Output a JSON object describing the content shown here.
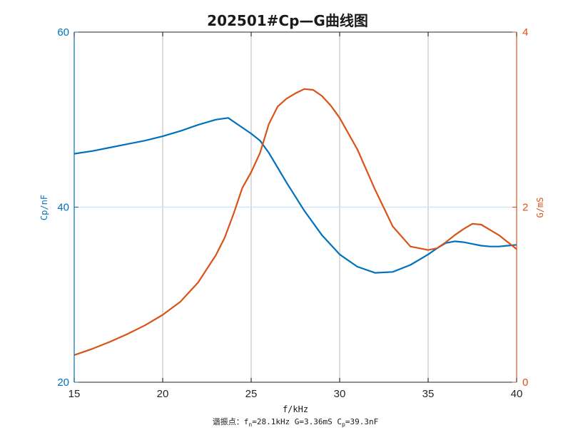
{
  "chart_data": {
    "type": "line",
    "title": "202501#Cp—G曲线图",
    "xlabel": "f/kHz",
    "xlim": [
      15,
      40
    ],
    "xticks": [
      15,
      20,
      25,
      30,
      35,
      40
    ],
    "grid": "vertical",
    "y_left": {
      "label": "Cp/nF",
      "lim": [
        20,
        60
      ],
      "ticks": [
        20,
        40,
        60
      ],
      "color": "#0072BD"
    },
    "y_right": {
      "label": "G/mS",
      "lim": [
        0,
        4
      ],
      "ticks": [
        0,
        2,
        4
      ],
      "color": "#D95319"
    },
    "annotation": {
      "prefix": "谐振点：f",
      "f_sub": "n",
      "f_value": "=28.1kHz  G=3.36mS  C",
      "c_sub": "p",
      "c_value": "=39.3nF"
    },
    "series": [
      {
        "axis": "left",
        "color": "#0072BD",
        "x": [
          15,
          16,
          17,
          18,
          19,
          20,
          21,
          22,
          23,
          23.7,
          24.2,
          25,
          25.5,
          26,
          27,
          28,
          29,
          30,
          31,
          32,
          33,
          34,
          35,
          35.5,
          36,
          36.5,
          37,
          37.5,
          38,
          38.5,
          39,
          39.5,
          40
        ],
        "y": [
          46.1,
          46.4,
          46.8,
          47.2,
          47.6,
          48.1,
          48.7,
          49.4,
          50.0,
          50.2,
          49.5,
          48.4,
          47.6,
          46.2,
          42.8,
          39.6,
          36.8,
          34.6,
          33.2,
          32.5,
          32.6,
          33.4,
          34.6,
          35.3,
          35.9,
          36.1,
          36.0,
          35.8,
          35.6,
          35.5,
          35.5,
          35.6,
          35.7
        ]
      },
      {
        "axis": "right",
        "color": "#D95319",
        "x": [
          15,
          16,
          17,
          18,
          19,
          20,
          21,
          22,
          23,
          23.5,
          24,
          24.5,
          25,
          25.5,
          26,
          26.5,
          27,
          27.5,
          28,
          28.5,
          29,
          29.5,
          30,
          31,
          32,
          33,
          34,
          35,
          35.5,
          36,
          36.5,
          37,
          37.5,
          38,
          38.5,
          39,
          39.5,
          40
        ],
        "y": [
          0.31,
          0.38,
          0.46,
          0.55,
          0.65,
          0.77,
          0.92,
          1.14,
          1.45,
          1.65,
          1.92,
          2.22,
          2.4,
          2.62,
          2.95,
          3.15,
          3.24,
          3.3,
          3.35,
          3.34,
          3.27,
          3.16,
          3.02,
          2.66,
          2.2,
          1.78,
          1.55,
          1.51,
          1.53,
          1.6,
          1.68,
          1.75,
          1.81,
          1.8,
          1.74,
          1.68,
          1.6,
          1.52
        ]
      }
    ]
  }
}
